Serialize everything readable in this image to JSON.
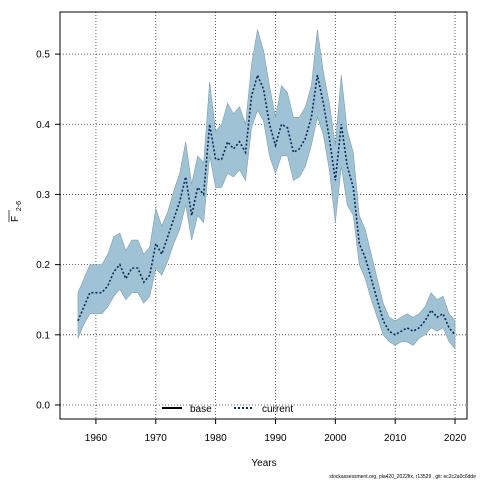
{
  "chart_data": {
    "type": "line",
    "xlabel": "Years",
    "ylabel_main": "F",
    "ylabel_sub": "2-6",
    "xlim": [
      1954,
      2022
    ],
    "ylim": [
      -0.02,
      0.56
    ],
    "xticks": [
      1960,
      1970,
      1980,
      1990,
      2000,
      2010,
      2020
    ],
    "yticks": [
      0.0,
      0.1,
      0.2,
      0.3,
      0.4,
      0.5
    ],
    "ytick_labels": [
      "0.0",
      "0.1",
      "0.2",
      "0.3",
      "0.4",
      "0.5"
    ],
    "grid": true,
    "legend_position": "bottom-center",
    "legend": [
      "base",
      "current"
    ],
    "band_color": "#9fc3d5",
    "band_edge_color": "#7f9fae",
    "current_color": "#0a2a5c",
    "x": [
      1957,
      1958,
      1959,
      1960,
      1961,
      1962,
      1963,
      1964,
      1965,
      1966,
      1967,
      1968,
      1969,
      1970,
      1971,
      1972,
      1973,
      1974,
      1975,
      1976,
      1977,
      1978,
      1979,
      1980,
      1981,
      1982,
      1983,
      1984,
      1985,
      1986,
      1987,
      1988,
      1989,
      1990,
      1991,
      1992,
      1993,
      1994,
      1995,
      1996,
      1997,
      1998,
      1999,
      2000,
      2001,
      2002,
      2003,
      2004,
      2005,
      2006,
      2007,
      2008,
      2009,
      2010,
      2011,
      2012,
      2013,
      2014,
      2015,
      2016,
      2017,
      2018,
      2019,
      2020
    ],
    "series": [
      {
        "name": "current",
        "values": [
          0.12,
          0.14,
          0.16,
          0.16,
          0.16,
          0.17,
          0.19,
          0.2,
          0.18,
          0.195,
          0.195,
          0.175,
          0.185,
          0.23,
          0.215,
          0.24,
          0.265,
          0.29,
          0.325,
          0.27,
          0.31,
          0.3,
          0.4,
          0.35,
          0.35,
          0.375,
          0.365,
          0.375,
          0.36,
          0.44,
          0.47,
          0.45,
          0.4,
          0.37,
          0.4,
          0.395,
          0.36,
          0.365,
          0.38,
          0.41,
          0.47,
          0.43,
          0.38,
          0.32,
          0.4,
          0.34,
          0.31,
          0.23,
          0.21,
          0.18,
          0.15,
          0.12,
          0.105,
          0.1,
          0.105,
          0.11,
          0.105,
          0.11,
          0.12,
          0.135,
          0.125,
          0.13,
          0.11,
          0.1
        ]
      }
    ],
    "band_upper": [
      0.16,
      0.18,
      0.2,
      0.2,
      0.2,
      0.215,
      0.24,
      0.245,
      0.22,
      0.235,
      0.235,
      0.215,
      0.225,
      0.28,
      0.255,
      0.275,
      0.305,
      0.33,
      0.375,
      0.315,
      0.355,
      0.345,
      0.46,
      0.39,
      0.4,
      0.43,
      0.415,
      0.425,
      0.4,
      0.485,
      0.535,
      0.505,
      0.455,
      0.41,
      0.455,
      0.445,
      0.41,
      0.41,
      0.425,
      0.455,
      0.535,
      0.475,
      0.43,
      0.37,
      0.47,
      0.39,
      0.36,
      0.27,
      0.25,
      0.215,
      0.18,
      0.145,
      0.125,
      0.12,
      0.125,
      0.13,
      0.125,
      0.13,
      0.14,
      0.16,
      0.15,
      0.155,
      0.13,
      0.12
    ],
    "band_lower": [
      0.095,
      0.115,
      0.13,
      0.13,
      0.13,
      0.14,
      0.155,
      0.165,
      0.15,
      0.16,
      0.16,
      0.145,
      0.155,
      0.195,
      0.185,
      0.205,
      0.23,
      0.25,
      0.285,
      0.235,
      0.27,
      0.26,
      0.355,
      0.31,
      0.31,
      0.33,
      0.325,
      0.335,
      0.32,
      0.395,
      0.42,
      0.405,
      0.355,
      0.33,
      0.355,
      0.355,
      0.32,
      0.325,
      0.34,
      0.37,
      0.41,
      0.385,
      0.335,
      0.26,
      0.34,
      0.285,
      0.27,
      0.2,
      0.18,
      0.15,
      0.125,
      0.1,
      0.09,
      0.085,
      0.09,
      0.09,
      0.085,
      0.095,
      0.1,
      0.11,
      0.105,
      0.11,
      0.09,
      0.08
    ]
  },
  "footer": "stockassessment.org, pla420_2022fix, r13529 , git: ec2c2a0c6dde"
}
